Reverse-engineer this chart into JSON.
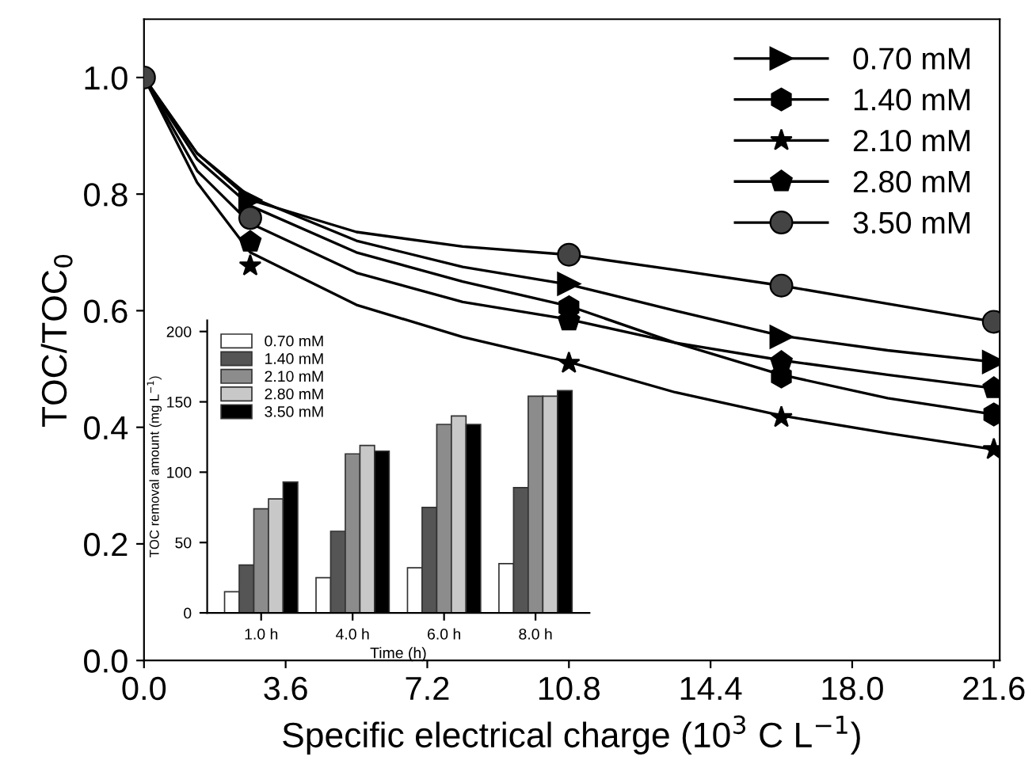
{
  "chart_data": [
    {
      "type": "scatter",
      "xlabel": "Specific electrical charge (10$^{3}$ C L$^{−1}$)",
      "ylabel": "TOC/TOC$_{0}$",
      "x": [
        0,
        2.7,
        10.8,
        16.2,
        21.6
      ],
      "series": [
        {
          "name": "0.70 mM",
          "color": "#000000",
          "marker": "triangle",
          "values": [
            null,
            0.79,
            0.646,
            0.555,
            0.512
          ]
        },
        {
          "name": "1.40 mM",
          "color": "#000000",
          "values": [
            null,
            null,
            0.606,
            0.487,
            0.422
          ]
        },
        {
          "name": "2.10 mM",
          "color": "#000000",
          "marker": "star",
          "values": [
            null,
            0.677,
            0.51,
            0.417,
            0.362
          ]
        },
        {
          "name": "2.80 mM",
          "color": "#000000",
          "values": [
            null,
            0.718,
            0.583,
            0.512,
            0.467
          ]
        },
        {
          "name": "3.50 mM",
          "color": "#444444",
          "marker": "circle",
          "values": [
            1.0,
            0.759,
            0.696,
            0.643,
            0.581
          ]
        },
        {
          "type": "line",
          "color": "#000000",
          "x": [
            0,
            1.35,
            2.7,
            5.4,
            8.1,
            10.8,
            13.5,
            16.2,
            18.9,
            21.6
          ],
          "values": [
            1.0,
            0.87,
            0.795,
            0.72,
            0.675,
            0.645,
            0.6,
            0.557,
            0.532,
            0.512
          ]
        },
        {
          "type": "line",
          "color": "#000000",
          "x": [
            0,
            1.35,
            2.7,
            5.4,
            8.1,
            10.8,
            13.5,
            16.2,
            18.9,
            21.6
          ],
          "values": [
            1.0,
            0.86,
            0.78,
            0.7,
            0.65,
            0.608,
            0.545,
            0.49,
            0.45,
            0.422
          ]
        },
        {
          "type": "line",
          "color": "#000000",
          "x": [
            0,
            1.35,
            2.7,
            5.4,
            8.1,
            10.8,
            13.5,
            16.2,
            18.9,
            21.6
          ],
          "values": [
            1.0,
            0.82,
            0.7,
            0.61,
            0.555,
            0.512,
            0.46,
            0.42,
            0.39,
            0.362
          ]
        },
        {
          "type": "line",
          "color": "#000000",
          "x": [
            0,
            1.35,
            2.7,
            5.4,
            8.1,
            10.8,
            13.5,
            16.2,
            18.9,
            21.6
          ],
          "values": [
            1.0,
            0.84,
            0.75,
            0.665,
            0.615,
            0.585,
            0.545,
            0.515,
            0.49,
            0.467
          ]
        },
        {
          "type": "line",
          "color": "#000000",
          "x": [
            0,
            1.35,
            2.7,
            5.4,
            8.1,
            10.8,
            13.5,
            16.2,
            18.9,
            21.6
          ],
          "values": [
            1.0,
            0.87,
            0.79,
            0.735,
            0.71,
            0.696,
            0.67,
            0.643,
            0.612,
            0.581
          ]
        }
      ],
      "xlim": [
        0,
        21.75
      ],
      "xticks": [
        {
          "value": 0,
          "label": "0.0"
        },
        3.6,
        7.2,
        10.8,
        14.4,
        {
          "value": 18,
          "label": "18.0"
        },
        21.6
      ],
      "ylim": [
        0,
        1.1
      ],
      "yticks": [
        {
          "value": 0,
          "label": "0.0"
        },
        0.2,
        0.4,
        0.6,
        0.8,
        {
          "value": 1,
          "label": "1.0"
        }
      ],
      "grid": false,
      "legend": "top right",
      "line_style": "solid"
    },
    {
      "type": "bar",
      "xlabel": "Time (h)",
      "ylabel": "TOC removal amount (mg L$^{−1}$)",
      "categories": [
        "1.0 h",
        "4.0 h",
        "6.0 h",
        "8.0 h"
      ],
      "series": [
        {
          "name": "0.70 mM",
          "color": "#ffffff",
          "values": [
            15,
            25,
            32,
            35
          ]
        },
        {
          "name": "1.40 mM",
          "color": "#555555",
          "values": [
            34,
            58,
            75,
            89
          ]
        },
        {
          "name": "2.10 mM",
          "color": "#8c8c8c",
          "values": [
            74,
            113,
            134,
            154
          ]
        },
        {
          "name": "2.80 mM",
          "color": "#c8c8c8",
          "values": [
            81,
            119,
            140,
            154
          ]
        },
        {
          "name": "3.50 mM",
          "color": "#000000",
          "values": [
            93,
            115,
            134,
            158
          ]
        }
      ],
      "ylim": [
        0,
        208
      ],
      "yticks": [
        0,
        50,
        100,
        150,
        200
      ],
      "grid": false,
      "legend": "top left"
    }
  ]
}
